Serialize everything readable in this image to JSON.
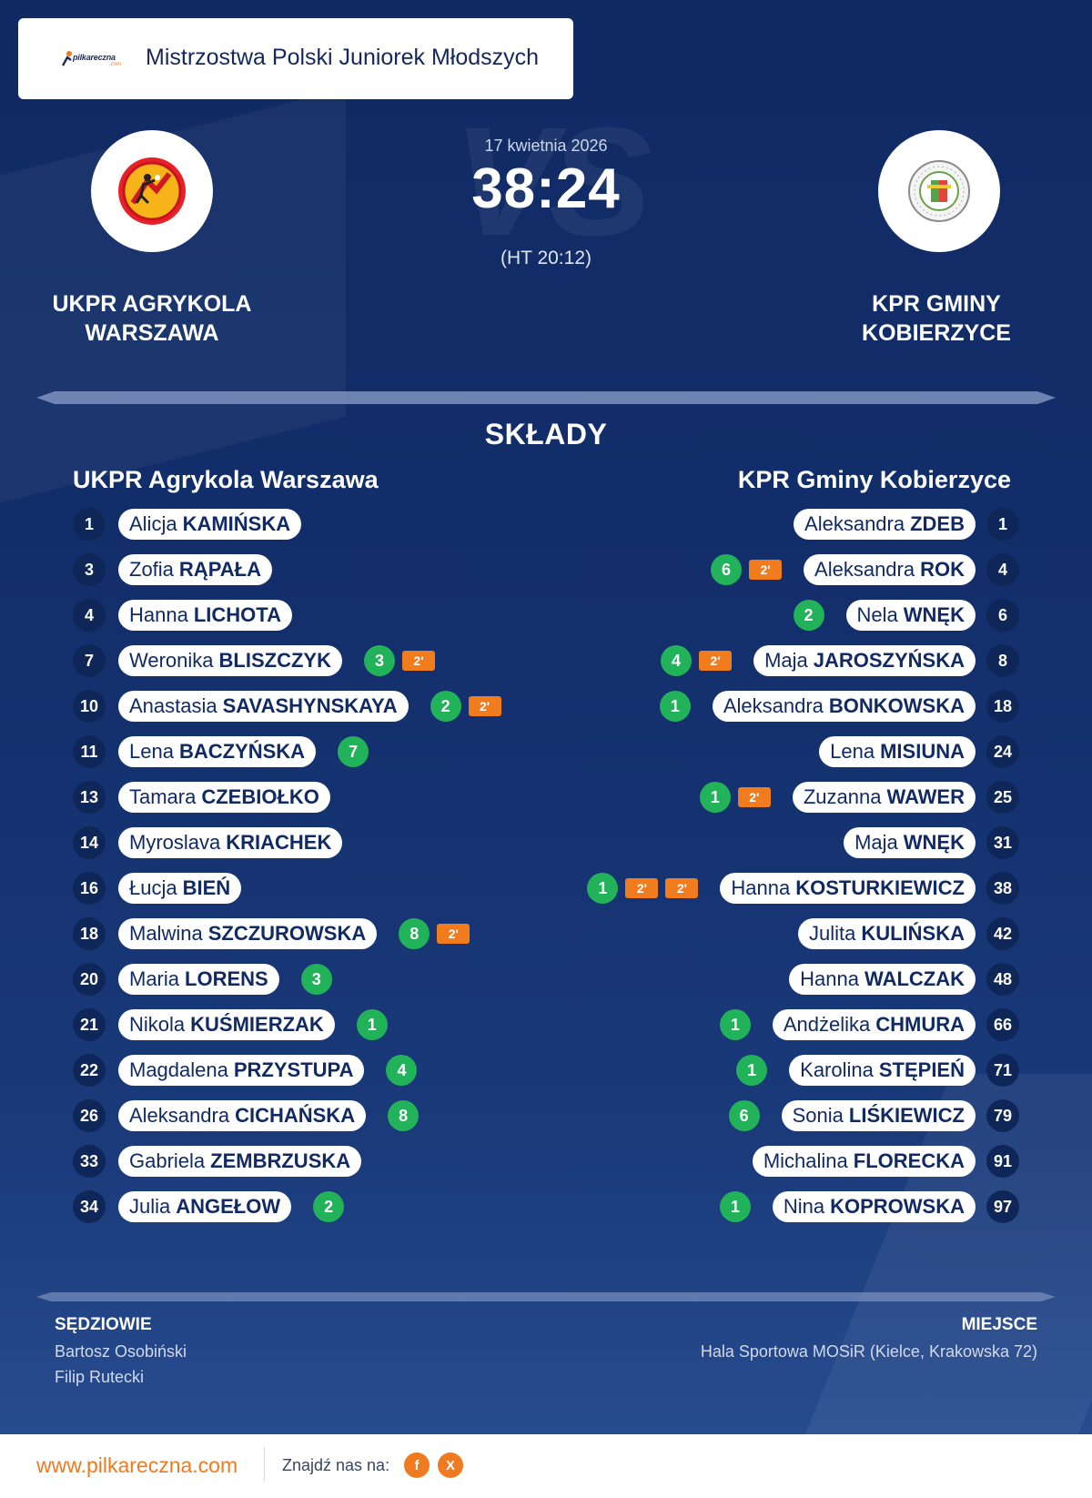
{
  "header": {
    "brand": "pilkareczna",
    "brand_suffix": ".com",
    "competition": "Mistrzostwa Polski Juniorek Młodszych"
  },
  "match": {
    "date": "17 kwietnia 2026",
    "score": "38:24",
    "halftime": "(HT 20:12)",
    "watermark": "VS",
    "home": {
      "name_line1": "UKPR AGRYKOLA",
      "name_line2": "WARSZAWA",
      "short": "UKPR Agrykola Warszawa"
    },
    "away": {
      "name_line1": "KPR GMINY",
      "name_line2": "KOBIERZYCE",
      "short": "KPR Gminy Kobierzyce"
    }
  },
  "lineups": {
    "title": "SKŁADY",
    "home": [
      {
        "number": "1",
        "first": "Alicja",
        "last": "KAMIŃSKA",
        "goals": null,
        "suspensions": 0
      },
      {
        "number": "3",
        "first": "Zofia",
        "last": "RĄPAŁA",
        "goals": null,
        "suspensions": 0
      },
      {
        "number": "4",
        "first": "Hanna",
        "last": "LICHOTA",
        "goals": null,
        "suspensions": 0
      },
      {
        "number": "7",
        "first": "Weronika",
        "last": "BLISZCZYK",
        "goals": "3",
        "suspensions": 1
      },
      {
        "number": "10",
        "first": "Anastasia",
        "last": "SAVASHYNSKAYA",
        "goals": "2",
        "suspensions": 1
      },
      {
        "number": "11",
        "first": "Lena",
        "last": "BACZYŃSKA",
        "goals": "7",
        "suspensions": 0
      },
      {
        "number": "13",
        "first": "Tamara",
        "last": "CZEBIOŁKO",
        "goals": null,
        "suspensions": 0
      },
      {
        "number": "14",
        "first": "Myroslava",
        "last": "KRIACHEK",
        "goals": null,
        "suspensions": 0
      },
      {
        "number": "16",
        "first": "Łucja",
        "last": "BIEŃ",
        "goals": null,
        "suspensions": 0
      },
      {
        "number": "18",
        "first": "Malwina",
        "last": "SZCZUROWSKA",
        "goals": "8",
        "suspensions": 1
      },
      {
        "number": "20",
        "first": "Maria",
        "last": "LORENS",
        "goals": "3",
        "suspensions": 0
      },
      {
        "number": "21",
        "first": "Nikola",
        "last": "KUŚMIERZAK",
        "goals": "1",
        "suspensions": 0
      },
      {
        "number": "22",
        "first": "Magdalena",
        "last": "PRZYSTUPA",
        "goals": "4",
        "suspensions": 0
      },
      {
        "number": "26",
        "first": "Aleksandra",
        "last": "CICHAŃSKA",
        "goals": "8",
        "suspensions": 0
      },
      {
        "number": "33",
        "first": "Gabriela",
        "last": "ZEMBRZUSKA",
        "goals": null,
        "suspensions": 0
      },
      {
        "number": "34",
        "first": "Julia",
        "last": "ANGEŁOW",
        "goals": "2",
        "suspensions": 0
      }
    ],
    "away": [
      {
        "number": "1",
        "first": "Aleksandra",
        "last": "ZDEB",
        "goals": null,
        "suspensions": 0
      },
      {
        "number": "4",
        "first": "Aleksandra",
        "last": "ROK",
        "goals": "6",
        "suspensions": 1
      },
      {
        "number": "6",
        "first": "Nela",
        "last": "WNĘK",
        "goals": "2",
        "suspensions": 0
      },
      {
        "number": "8",
        "first": "Maja",
        "last": "JAROSZYŃSKA",
        "goals": "4",
        "suspensions": 1
      },
      {
        "number": "18",
        "first": "Aleksandra",
        "last": "BONKOWSKA",
        "goals": "1",
        "suspensions": 0
      },
      {
        "number": "24",
        "first": "Lena",
        "last": "MISIUNA",
        "goals": null,
        "suspensions": 0
      },
      {
        "number": "25",
        "first": "Zuzanna",
        "last": "WAWER",
        "goals": "1",
        "suspensions": 1
      },
      {
        "number": "31",
        "first": "Maja",
        "last": "WNĘK",
        "goals": null,
        "suspensions": 0
      },
      {
        "number": "38",
        "first": "Hanna",
        "last": "KOSTURKIEWICZ",
        "goals": "1",
        "suspensions": 2
      },
      {
        "number": "42",
        "first": "Julita",
        "last": "KULIŃSKA",
        "goals": null,
        "suspensions": 0
      },
      {
        "number": "48",
        "first": "Hanna",
        "last": "WALCZAK",
        "goals": null,
        "suspensions": 0
      },
      {
        "number": "66",
        "first": "Andżelika",
        "last": "CHMURA",
        "goals": "1",
        "suspensions": 0
      },
      {
        "number": "71",
        "first": "Karolina",
        "last": "STĘPIEŃ",
        "goals": "1",
        "suspensions": 0
      },
      {
        "number": "79",
        "first": "Sonia",
        "last": "LIŚKIEWICZ",
        "goals": "6",
        "suspensions": 0
      },
      {
        "number": "91",
        "first": "Michalina",
        "last": "FLORECKA",
        "goals": null,
        "suspensions": 0
      },
      {
        "number": "97",
        "first": "Nina",
        "last": "KOPROWSKA",
        "goals": "1",
        "suspensions": 0
      }
    ],
    "suspension_label": "2'"
  },
  "officials": {
    "referees_label": "SĘDZIOWIE",
    "referees": [
      "Bartosz Osobiński",
      "Filip Rutecki"
    ],
    "venue_label": "MIEJSCE",
    "venue": "Hala Sportowa MOSiR (Kielce, Krakowska 72)"
  },
  "footer": {
    "site": "www.pilkareczna.com",
    "find_us": "Znajdź nas na:",
    "facebook": "f",
    "x": "X"
  },
  "colors": {
    "background": "#132f6c",
    "accent_orange": "#f07c1e",
    "goal_green": "#22b25a",
    "number_navy": "#0f2658"
  },
  "icons": [
    "handball-logo-icon",
    "home-team-crest-icon",
    "away-team-crest-icon",
    "facebook-icon",
    "x-icon"
  ]
}
